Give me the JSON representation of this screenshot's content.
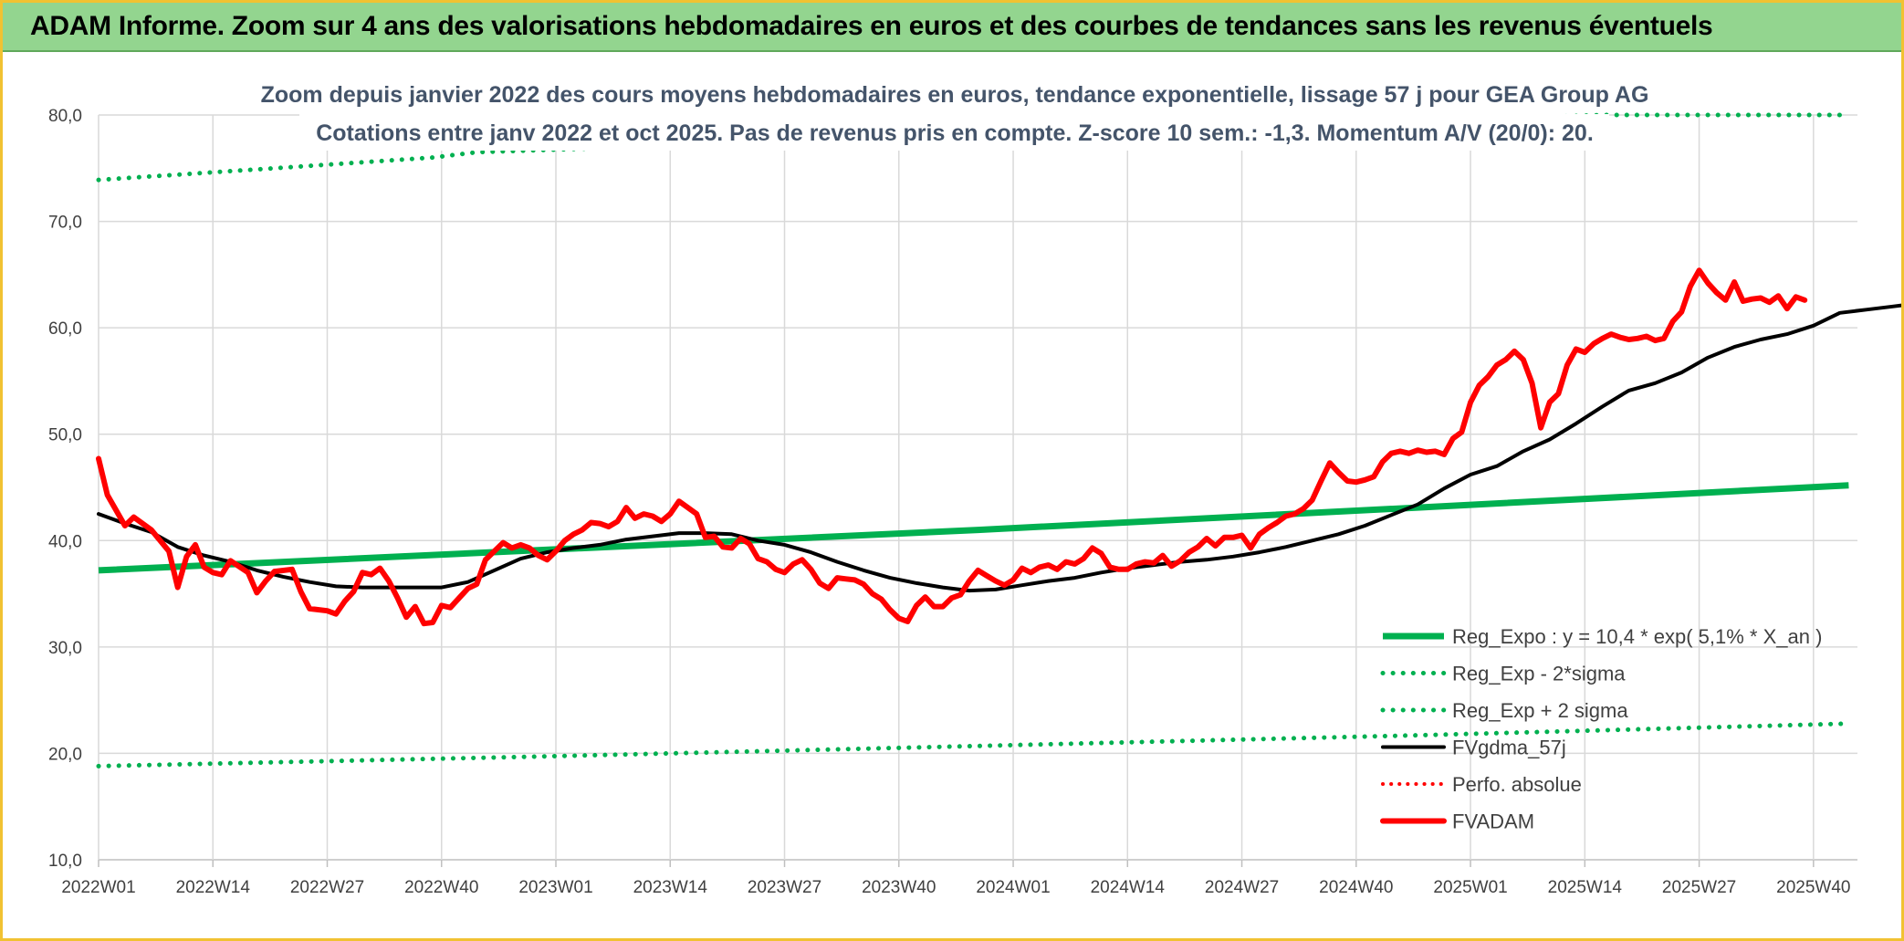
{
  "header": {
    "title": "ADAM Informe. Zoom sur 4 ans des valorisations hebdomadaires en euros et des courbes de tendances sans les revenus éventuels"
  },
  "colors": {
    "header_bg": "#93d58f",
    "reg_expo": "#00b050",
    "fvgdma": "#000000",
    "fvadam": "#ff0000",
    "perfo": "#ff0000"
  },
  "chart_data": {
    "type": "line",
    "title": "Zoom depuis janvier 2022 des cours moyens hebdomadaires en euros, tendance exponentielle, lissage 57 j pour GEA Group AG",
    "subtitle": "Cotations entre janv 2022 et oct 2025. Pas de revenus pris en compte. Z-score 10 sem.: -1,3. Momentum A/V (20/0): 20.",
    "xlabel": "",
    "ylabel": "",
    "ylim": [
      10,
      80
    ],
    "yticks": [
      "10,0",
      "20,0",
      "30,0",
      "40,0",
      "50,0",
      "60,0",
      "70,0",
      "80,0"
    ],
    "xticks": [
      "2022W01",
      "2022W14",
      "2022W27",
      "2022W40",
      "2023W01",
      "2023W14",
      "2023W27",
      "2023W40",
      "2024W01",
      "2024W14",
      "2024W27",
      "2024W40",
      "2025W01",
      "2025W14",
      "2025W27",
      "2025W40"
    ],
    "x_range_weeks": [
      0,
      200
    ],
    "grid": true,
    "legend_position": "bottom-right",
    "legend": [
      {
        "name": "Reg_Expo : y = 10,4 * exp( 5,1% *  X_an )",
        "style": "solid-green"
      },
      {
        "name": "Reg_Exp - 2*sigma",
        "style": "dotted-green"
      },
      {
        "name": "Reg_Exp + 2 sigma",
        "style": "dotted-green"
      },
      {
        "name": "FVgdma_57j",
        "style": "solid-black"
      },
      {
        "name": "Perfo. absolue",
        "style": "dotted-red"
      },
      {
        "name": "FVADAM",
        "style": "solid-red"
      }
    ],
    "series": [
      {
        "name": "Reg_Expo : y = 10,4 * exp( 5,1% *  X_an )",
        "points": [
          [
            0,
            37.2
          ],
          [
            50,
            39.1
          ],
          [
            100,
            41.0
          ],
          [
            150,
            43.1
          ],
          [
            199,
            45.2
          ]
        ]
      },
      {
        "name": "Reg_Exp - 2*sigma",
        "points": [
          [
            0,
            18.8
          ],
          [
            50,
            19.7
          ],
          [
            100,
            20.7
          ],
          [
            150,
            21.7
          ],
          [
            199,
            22.8
          ]
        ]
      },
      {
        "name": "Reg_Exp + 2 sigma",
        "points": [
          [
            0,
            73.9
          ],
          [
            20,
            75.0
          ],
          [
            38,
            76.0
          ],
          [
            43,
            76.5
          ],
          [
            171,
            80.0
          ],
          [
            199,
            80.0
          ]
        ]
      },
      {
        "name": "FVgdma_57j",
        "points": [
          [
            0,
            42.5
          ],
          [
            3,
            41.6
          ],
          [
            6,
            40.8
          ],
          [
            9,
            39.4
          ],
          [
            12,
            38.6
          ],
          [
            15,
            38.0
          ],
          [
            18,
            37.2
          ],
          [
            21,
            36.6
          ],
          [
            24,
            36.1
          ],
          [
            27,
            35.7
          ],
          [
            30,
            35.6
          ],
          [
            33,
            35.6
          ],
          [
            36,
            35.6
          ],
          [
            39,
            35.6
          ],
          [
            42,
            36.1
          ],
          [
            45,
            37.2
          ],
          [
            48,
            38.3
          ],
          [
            51,
            38.9
          ],
          [
            54,
            39.3
          ],
          [
            57,
            39.6
          ],
          [
            60,
            40.1
          ],
          [
            63,
            40.4
          ],
          [
            66,
            40.7
          ],
          [
            69,
            40.7
          ],
          [
            72,
            40.6
          ],
          [
            75,
            40.0
          ],
          [
            78,
            39.6
          ],
          [
            81,
            38.9
          ],
          [
            84,
            38.0
          ],
          [
            87,
            37.2
          ],
          [
            90,
            36.5
          ],
          [
            93,
            36.0
          ],
          [
            96,
            35.6
          ],
          [
            99,
            35.3
          ],
          [
            102,
            35.4
          ],
          [
            105,
            35.8
          ],
          [
            108,
            36.2
          ],
          [
            111,
            36.5
          ],
          [
            114,
            37.0
          ],
          [
            117,
            37.4
          ],
          [
            120,
            37.7
          ],
          [
            123,
            38.0
          ],
          [
            126,
            38.2
          ],
          [
            129,
            38.5
          ],
          [
            132,
            38.9
          ],
          [
            135,
            39.4
          ],
          [
            138,
            40.0
          ],
          [
            141,
            40.6
          ],
          [
            144,
            41.4
          ],
          [
            147,
            42.4
          ],
          [
            150,
            43.4
          ],
          [
            153,
            44.9
          ],
          [
            156,
            46.2
          ],
          [
            159,
            47.0
          ],
          [
            162,
            48.4
          ],
          [
            165,
            49.5
          ],
          [
            168,
            51.0
          ],
          [
            171,
            52.6
          ],
          [
            174,
            54.1
          ],
          [
            177,
            54.8
          ],
          [
            180,
            55.8
          ],
          [
            183,
            57.2
          ],
          [
            186,
            58.2
          ],
          [
            189,
            58.9
          ],
          [
            192,
            59.4
          ],
          [
            195,
            60.2
          ],
          [
            198,
            61.4
          ],
          [
            201,
            61.7
          ],
          [
            204,
            62.0
          ],
          [
            207,
            62.3
          ],
          [
            210,
            62.3
          ],
          [
            213,
            62.3
          ]
        ]
      },
      {
        "name": "FVADAM",
        "points": [
          [
            0,
            47.7
          ],
          [
            1,
            44.3
          ],
          [
            3,
            41.4
          ],
          [
            4,
            42.2
          ],
          [
            6,
            41.0
          ],
          [
            8,
            39.0
          ],
          [
            9,
            35.6
          ],
          [
            10,
            38.5
          ],
          [
            11,
            39.6
          ],
          [
            12,
            37.5
          ],
          [
            13,
            37.0
          ],
          [
            14,
            36.8
          ],
          [
            15,
            38.1
          ],
          [
            17,
            37.0
          ],
          [
            18,
            35.1
          ],
          [
            19,
            36.2
          ],
          [
            20,
            37.1
          ],
          [
            22,
            37.3
          ],
          [
            23,
            35.2
          ],
          [
            24,
            33.6
          ],
          [
            26,
            33.4
          ],
          [
            27,
            33.1
          ],
          [
            28,
            34.3
          ],
          [
            29,
            35.2
          ],
          [
            30,
            37.0
          ],
          [
            31,
            36.8
          ],
          [
            32,
            37.4
          ],
          [
            33,
            36.2
          ],
          [
            34,
            34.6
          ],
          [
            35,
            32.8
          ],
          [
            36,
            33.8
          ],
          [
            37,
            32.2
          ],
          [
            38,
            32.3
          ],
          [
            39,
            33.9
          ],
          [
            40,
            33.7
          ],
          [
            41,
            34.6
          ],
          [
            42,
            35.5
          ],
          [
            43,
            35.9
          ],
          [
            44,
            38.2
          ],
          [
            45,
            39.0
          ],
          [
            46,
            39.8
          ],
          [
            47,
            39.3
          ],
          [
            48,
            39.6
          ],
          [
            49,
            39.3
          ],
          [
            50,
            38.6
          ],
          [
            51,
            38.2
          ],
          [
            52,
            39.0
          ],
          [
            53,
            40.0
          ],
          [
            54,
            40.6
          ],
          [
            55,
            41.0
          ],
          [
            56,
            41.7
          ],
          [
            57,
            41.6
          ],
          [
            58,
            41.3
          ],
          [
            59,
            41.8
          ],
          [
            60,
            43.1
          ],
          [
            61,
            42.1
          ],
          [
            62,
            42.5
          ],
          [
            63,
            42.3
          ],
          [
            64,
            41.8
          ],
          [
            65,
            42.5
          ],
          [
            66,
            43.7
          ],
          [
            67,
            43.1
          ],
          [
            68,
            42.5
          ],
          [
            69,
            40.3
          ],
          [
            70,
            40.4
          ],
          [
            71,
            39.4
          ],
          [
            72,
            39.3
          ],
          [
            73,
            40.2
          ],
          [
            74,
            39.7
          ],
          [
            75,
            38.3
          ],
          [
            76,
            38.0
          ],
          [
            77,
            37.3
          ],
          [
            78,
            37.0
          ],
          [
            79,
            37.8
          ],
          [
            80,
            38.2
          ],
          [
            81,
            37.3
          ],
          [
            82,
            36.0
          ],
          [
            83,
            35.5
          ],
          [
            84,
            36.5
          ],
          [
            85,
            36.4
          ],
          [
            86,
            36.3
          ],
          [
            87,
            35.9
          ],
          [
            88,
            35.0
          ],
          [
            89,
            34.5
          ],
          [
            90,
            33.5
          ],
          [
            91,
            32.7
          ],
          [
            92,
            32.4
          ],
          [
            93,
            33.9
          ],
          [
            94,
            34.7
          ],
          [
            95,
            33.8
          ],
          [
            96,
            33.8
          ],
          [
            97,
            34.6
          ],
          [
            98,
            34.9
          ],
          [
            99,
            36.2
          ],
          [
            100,
            37.2
          ],
          [
            101,
            36.7
          ],
          [
            102,
            36.2
          ],
          [
            103,
            35.8
          ],
          [
            104,
            36.3
          ],
          [
            105,
            37.4
          ],
          [
            106,
            37.0
          ],
          [
            107,
            37.5
          ],
          [
            108,
            37.7
          ],
          [
            109,
            37.3
          ],
          [
            110,
            38.0
          ],
          [
            111,
            37.8
          ],
          [
            112,
            38.3
          ],
          [
            113,
            39.3
          ],
          [
            114,
            38.8
          ],
          [
            115,
            37.5
          ],
          [
            116,
            37.3
          ],
          [
            117,
            37.3
          ],
          [
            118,
            37.8
          ],
          [
            119,
            38.0
          ],
          [
            120,
            37.9
          ],
          [
            121,
            38.6
          ],
          [
            122,
            37.6
          ],
          [
            123,
            38.1
          ],
          [
            124,
            38.9
          ],
          [
            125,
            39.4
          ],
          [
            126,
            40.2
          ],
          [
            127,
            39.5
          ],
          [
            128,
            40.3
          ],
          [
            129,
            40.3
          ],
          [
            130,
            40.5
          ],
          [
            131,
            39.3
          ],
          [
            132,
            40.6
          ],
          [
            133,
            41.2
          ],
          [
            134,
            41.7
          ],
          [
            135,
            42.3
          ],
          [
            136,
            42.5
          ],
          [
            137,
            43.0
          ],
          [
            138,
            43.8
          ],
          [
            139,
            45.6
          ],
          [
            140,
            47.3
          ],
          [
            141,
            46.4
          ],
          [
            142,
            45.6
          ],
          [
            143,
            45.5
          ],
          [
            144,
            45.7
          ],
          [
            145,
            46.0
          ],
          [
            146,
            47.4
          ],
          [
            147,
            48.2
          ],
          [
            148,
            48.4
          ],
          [
            149,
            48.2
          ],
          [
            150,
            48.5
          ],
          [
            151,
            48.3
          ],
          [
            152,
            48.4
          ],
          [
            153,
            48.1
          ],
          [
            154,
            49.6
          ],
          [
            155,
            50.2
          ],
          [
            156,
            53.0
          ],
          [
            157,
            54.6
          ],
          [
            158,
            55.4
          ],
          [
            159,
            56.5
          ],
          [
            160,
            57.0
          ],
          [
            161,
            57.8
          ],
          [
            162,
            57.0
          ],
          [
            163,
            54.8
          ],
          [
            164,
            50.6
          ],
          [
            165,
            53.0
          ],
          [
            166,
            53.8
          ],
          [
            167,
            56.5
          ],
          [
            168,
            58.0
          ],
          [
            169,
            57.7
          ],
          [
            170,
            58.5
          ],
          [
            171,
            59.0
          ],
          [
            172,
            59.4
          ],
          [
            173,
            59.1
          ],
          [
            174,
            58.9
          ],
          [
            175,
            59.0
          ],
          [
            176,
            59.2
          ],
          [
            177,
            58.8
          ],
          [
            178,
            59.0
          ],
          [
            179,
            60.6
          ],
          [
            180,
            61.5
          ],
          [
            181,
            63.9
          ],
          [
            182,
            65.4
          ],
          [
            183,
            64.2
          ],
          [
            184,
            63.3
          ],
          [
            185,
            62.6
          ],
          [
            186,
            64.3
          ],
          [
            187,
            62.5
          ],
          [
            188,
            62.7
          ],
          [
            189,
            62.8
          ],
          [
            190,
            62.4
          ],
          [
            191,
            63.0
          ],
          [
            192,
            61.8
          ],
          [
            193,
            62.9
          ],
          [
            194,
            62.6
          ]
        ]
      }
    ]
  }
}
